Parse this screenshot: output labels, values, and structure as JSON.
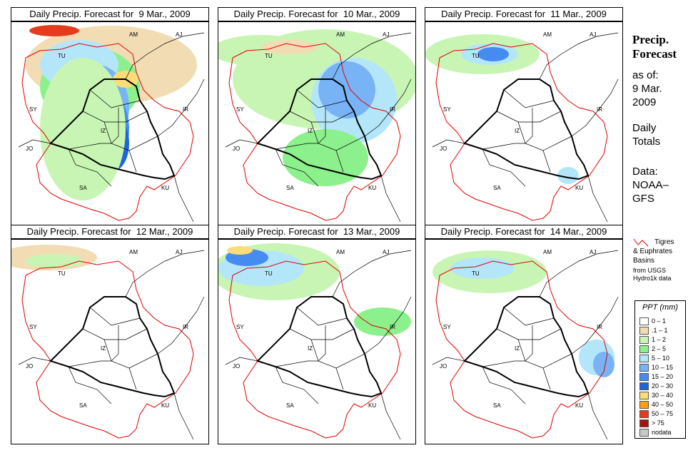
{
  "panels": [
    {
      "title": "Daily Precip. Forecast for  9 Mar., 2009"
    },
    {
      "title": "Daily Precip. Forecast for  10 Mar., 2009"
    },
    {
      "title": "Daily Precip. Forecast for  11 Mar., 2009"
    },
    {
      "title": "Daily Precip. Forecast for  12 Mar., 2009"
    },
    {
      "title": "Daily Precip. Forecast for  13 Mar., 2009"
    },
    {
      "title": "Daily Precip. Forecast for  14 Mar., 2009"
    }
  ],
  "region_labels": {
    "am": "AM",
    "aj": "AJ",
    "tu": "TU",
    "sy": "SY",
    "ir": "IR",
    "jo": "JO",
    "sa": "SA",
    "ku": "KU",
    "iz": "IZ"
  },
  "sidebar": {
    "title_line1": "Precip.",
    "title_line2": "Forecast",
    "as_of": "as of:",
    "date_line1": "9 Mar.",
    "date_line2": "2009",
    "daily_line1": "Daily",
    "daily_line2": "Totals",
    "data_line1": "Data:",
    "data_line2": "NOAA–",
    "data_line3": "GFS"
  },
  "basin_legend": {
    "line1": "Tigres",
    "line2": "& Euphrates",
    "line3": "Basins",
    "line4": "from USGS",
    "line5": "Hydro1k data",
    "line_color": "#e00000"
  },
  "ppt_legend": {
    "title": "PPT (mm)",
    "items": [
      {
        "label": "0 – 1",
        "color": "#ffffff"
      },
      {
        "label": ".1 – 1",
        "color": "#f2dcb4"
      },
      {
        "label": "1 – 2",
        "color": "#c8f5b4"
      },
      {
        "label": "2 – 5",
        "color": "#8cf08c"
      },
      {
        "label": "5 – 10",
        "color": "#b4e6fa"
      },
      {
        "label": "10 – 15",
        "color": "#78b4f5"
      },
      {
        "label": "15 – 20",
        "color": "#468cf0"
      },
      {
        "label": "20 – 30",
        "color": "#1e64dc"
      },
      {
        "label": "30 – 40",
        "color": "#fadc78"
      },
      {
        "label": "40 – 50",
        "color": "#ffa000"
      },
      {
        "label": "50 – 75",
        "color": "#e63c1e"
      },
      {
        "label": "> 75",
        "color": "#a01414"
      },
      {
        "label": "nodata",
        "color": "#c8c8c8"
      }
    ]
  }
}
